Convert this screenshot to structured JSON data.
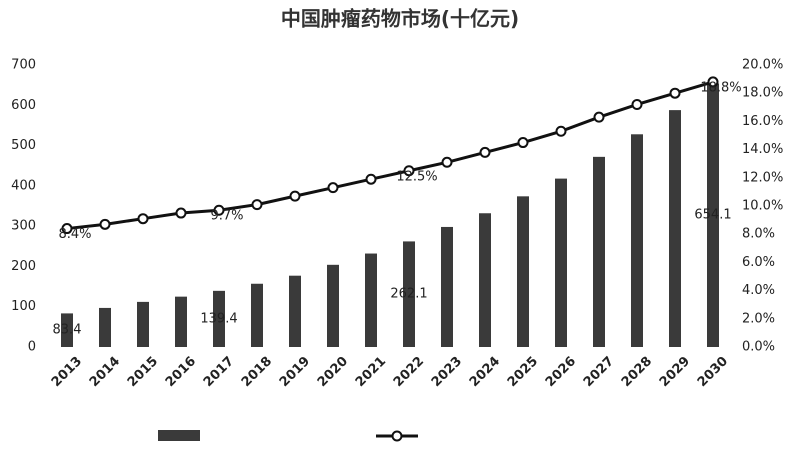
{
  "chart_data": {
    "type": "bar-line",
    "title": "中国肿瘤药物市场(十亿元)",
    "categories": [
      "2013",
      "2014",
      "2015",
      "2016",
      "2017",
      "2018",
      "2019",
      "2020",
      "2021",
      "2022",
      "2023",
      "2024",
      "2025",
      "2026",
      "2027",
      "2028",
      "2029",
      "2030"
    ],
    "series": [
      {
        "type": "bar",
        "color": "#3a3a3a",
        "values": [
          83.4,
          97,
          112,
          125,
          139.4,
          157,
          177,
          204,
          232,
          262.1,
          298,
          332,
          374,
          418,
          472,
          528,
          588,
          654.1
        ],
        "value_labels": [
          "83.4",
          null,
          null,
          null,
          "139.4",
          null,
          null,
          null,
          null,
          "262.1",
          null,
          null,
          null,
          null,
          null,
          null,
          null,
          "654.1"
        ]
      },
      {
        "type": "line",
        "axis": "y2",
        "color": "#111111",
        "values": [
          8.4,
          8.7,
          9.1,
          9.5,
          9.7,
          10.1,
          10.7,
          11.3,
          11.9,
          12.5,
          13.1,
          13.8,
          14.5,
          15.3,
          16.3,
          17.2,
          18.0,
          18.8
        ],
        "value_labels": [
          "8.4%",
          null,
          null,
          null,
          "9.7%",
          null,
          null,
          null,
          null,
          "12.5%",
          null,
          null,
          null,
          null,
          null,
          null,
          null,
          "18.8%"
        ]
      }
    ],
    "ylim": [
      0,
      700
    ],
    "yticks": [
      0,
      100,
      200,
      300,
      400,
      500,
      600,
      700
    ],
    "y2lim": [
      0,
      20
    ],
    "y2ticks": [
      {
        "value": 0,
        "label": "0.0%"
      },
      {
        "value": 2,
        "label": "2.0%"
      },
      {
        "value": 4,
        "label": "4.0%"
      },
      {
        "value": 6,
        "label": "6.0%"
      },
      {
        "value": 8,
        "label": "8.0%"
      },
      {
        "value": 10,
        "label": "10.0%"
      },
      {
        "value": 12,
        "label": "12.0%"
      },
      {
        "value": 14,
        "label": "14.0%"
      },
      {
        "value": 16,
        "label": "16.0%"
      },
      {
        "value": 18,
        "label": "18.0%"
      },
      {
        "value": 20,
        "label": "20.0%"
      }
    ],
    "grid": false
  }
}
